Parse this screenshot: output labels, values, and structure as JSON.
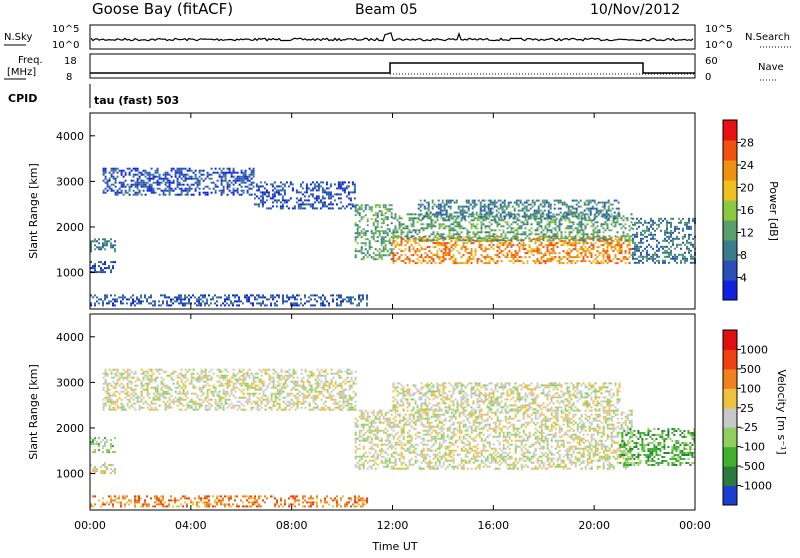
{
  "header": {
    "station": "Goose Bay (fitACF)",
    "beam": "Beam 05",
    "date": "10/Nov/2012"
  },
  "noise_panel": {
    "left_label": "N.Sky",
    "right_label": "N.Search",
    "left_ticks": [
      "10^5",
      "10^0"
    ],
    "right_ticks": [
      "10^5",
      "10^0"
    ]
  },
  "freq_panel": {
    "left_label_1": "Freq.",
    "left_label_2": "[MHz]",
    "right_label": "Nave",
    "left_ticks": [
      "18",
      "8"
    ],
    "right_ticks": [
      "60",
      "0"
    ]
  },
  "cpid": {
    "label": "CPID",
    "value": "tau (fast) 503"
  },
  "time_axis": {
    "label": "Time UT",
    "ticks": [
      "00:00",
      "04:00",
      "08:00",
      "12:00",
      "16:00",
      "20:00",
      "00:00"
    ]
  },
  "chart_data": [
    {
      "type": "heatmap",
      "name": "power",
      "ylabel": "Slant Range [km]",
      "yticks": [
        "1000",
        "2000",
        "3000",
        "4000"
      ],
      "ylim": [
        200,
        4500
      ],
      "xlim_hours": [
        0,
        24
      ],
      "colorbar_label": "Power [dB]",
      "colorbar_ticks": [
        "4",
        "8",
        "12",
        "16",
        "20",
        "24",
        "28"
      ],
      "colorbar_colors": [
        "#1020e0",
        "#2a4fb8",
        "#3a7d8a",
        "#5aa06a",
        "#8cc840",
        "#f0c020",
        "#f09010",
        "#f05010",
        "#e81010"
      ],
      "regions": [
        {
          "t": [
            0.0,
            1.0
          ],
          "r": [
            1000,
            1250
          ],
          "level": 1
        },
        {
          "t": [
            0.0,
            1.0
          ],
          "r": [
            1450,
            1750
          ],
          "level": 2
        },
        {
          "t": [
            0.5,
            6.5
          ],
          "r": [
            2700,
            3300
          ],
          "level": 1
        },
        {
          "t": [
            6.5,
            10.5
          ],
          "r": [
            2400,
            3000
          ],
          "level": 1
        },
        {
          "t": [
            0.0,
            11.0
          ],
          "r": [
            280,
            520
          ],
          "level": 1
        },
        {
          "t": [
            10.5,
            12.0
          ],
          "r": [
            1300,
            2500
          ],
          "level": 3
        },
        {
          "t": [
            12.0,
            21.5
          ],
          "r": [
            1200,
            1800
          ],
          "level": 6
        },
        {
          "t": [
            12.0,
            21.5
          ],
          "r": [
            1700,
            2300
          ],
          "level": 3
        },
        {
          "t": [
            13.0,
            21.0
          ],
          "r": [
            2200,
            2600
          ],
          "level": 2
        },
        {
          "t": [
            21.5,
            24.0
          ],
          "r": [
            1200,
            2200
          ],
          "level": 2
        }
      ]
    },
    {
      "type": "heatmap",
      "name": "velocity",
      "ylabel": "Slant Range [km]",
      "yticks": [
        "1000",
        "2000",
        "3000",
        "4000"
      ],
      "ylim": [
        200,
        4500
      ],
      "xlim_hours": [
        0,
        24
      ],
      "colorbar_label": "Velocity [m s⁻¹]",
      "colorbar_ticks": [
        "1000",
        "500",
        "100",
        "25",
        "-25",
        "-100",
        "-500",
        "-1000"
      ],
      "colorbar_colors": [
        "#1a3fd0",
        "#2a7a40",
        "#40b030",
        "#90d060",
        "#c8c8c8",
        "#f0c040",
        "#f08020",
        "#f04010",
        "#e01010"
      ],
      "regions": [
        {
          "t": [
            0.0,
            1.0
          ],
          "r": [
            1450,
            1800
          ],
          "level": 3
        },
        {
          "t": [
            0.0,
            1.0
          ],
          "r": [
            1000,
            1250
          ],
          "level": 4
        },
        {
          "t": [
            0.5,
            10.5
          ],
          "r": [
            2400,
            3300
          ],
          "level": 4
        },
        {
          "t": [
            0.0,
            11.0
          ],
          "r": [
            280,
            520
          ],
          "level": 6
        },
        {
          "t": [
            10.5,
            21.5
          ],
          "r": [
            1100,
            2400
          ],
          "level": 4
        },
        {
          "t": [
            12.0,
            21.0
          ],
          "r": [
            2400,
            3000
          ],
          "level": 4
        },
        {
          "t": [
            21.0,
            24.0
          ],
          "r": [
            1200,
            2000
          ],
          "level": 2
        }
      ]
    }
  ]
}
